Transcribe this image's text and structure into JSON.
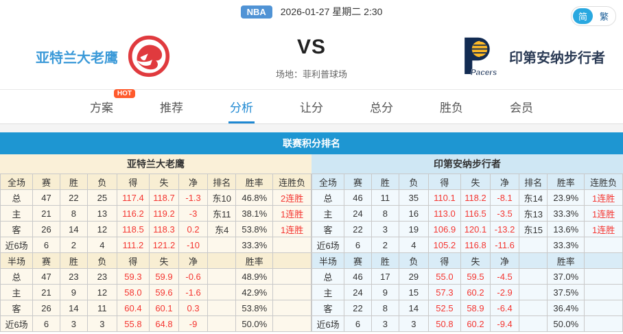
{
  "topbar": {
    "league": "NBA",
    "datetime": "2026-01-27 星期二 2:30",
    "lang": {
      "simplified": "简",
      "traditional": "繁"
    }
  },
  "match": {
    "home": "亚特兰大老鹰",
    "away": "印第安纳步行者",
    "vs": "VS",
    "venue": "场地：菲利普球场"
  },
  "tabs": [
    {
      "name": "plan",
      "label": "方案",
      "badge": "HOT"
    },
    {
      "name": "recommend",
      "label": "推荐"
    },
    {
      "name": "analysis",
      "label": "分析",
      "active": true
    },
    {
      "name": "handicap",
      "label": "让分"
    },
    {
      "name": "total",
      "label": "总分"
    },
    {
      "name": "winloss",
      "label": "胜负"
    },
    {
      "name": "member",
      "label": "会员"
    }
  ],
  "standings": {
    "section_title": "联赛积分排名",
    "left": {
      "team": "亚特兰大老鹰",
      "full": {
        "headers": [
          "全场",
          "赛",
          "胜",
          "负",
          "得",
          "失",
          "净",
          "排名",
          "胜率",
          "连胜负"
        ],
        "rows": [
          [
            "总",
            "47",
            "22",
            "25",
            "117.4",
            "118.7",
            "-1.3",
            "东10",
            "46.8%",
            "2连胜"
          ],
          [
            "主",
            "21",
            "8",
            "13",
            "116.2",
            "119.2",
            "-3",
            "东11",
            "38.1%",
            "1连胜"
          ],
          [
            "客",
            "26",
            "14",
            "12",
            "118.5",
            "118.3",
            "0.2",
            "东4",
            "53.8%",
            "1连胜"
          ],
          [
            "近6场",
            "6",
            "2",
            "4",
            "111.2",
            "121.2",
            "-10",
            "",
            "33.3%",
            ""
          ]
        ]
      },
      "half": {
        "headers": [
          "半场",
          "赛",
          "胜",
          "负",
          "得",
          "失",
          "净",
          "",
          "胜率",
          ""
        ],
        "rows": [
          [
            "总",
            "47",
            "23",
            "23",
            "59.3",
            "59.9",
            "-0.6",
            "",
            "48.9%",
            ""
          ],
          [
            "主",
            "21",
            "9",
            "12",
            "58.0",
            "59.6",
            "-1.6",
            "",
            "42.9%",
            ""
          ],
          [
            "客",
            "26",
            "14",
            "11",
            "60.4",
            "60.1",
            "0.3",
            "",
            "53.8%",
            ""
          ],
          [
            "近6场",
            "6",
            "3",
            "3",
            "55.8",
            "64.8",
            "-9",
            "",
            "50.0%",
            ""
          ]
        ]
      }
    },
    "right": {
      "team": "印第安纳步行者",
      "full": {
        "headers": [
          "全场",
          "赛",
          "胜",
          "负",
          "得",
          "失",
          "净",
          "排名",
          "胜率",
          "连胜负"
        ],
        "rows": [
          [
            "总",
            "46",
            "11",
            "35",
            "110.1",
            "118.2",
            "-8.1",
            "东14",
            "23.9%",
            "1连胜"
          ],
          [
            "主",
            "24",
            "8",
            "16",
            "113.0",
            "116.5",
            "-3.5",
            "东13",
            "33.3%",
            "1连胜"
          ],
          [
            "客",
            "22",
            "3",
            "19",
            "106.9",
            "120.1",
            "-13.2",
            "东15",
            "13.6%",
            "1连胜"
          ],
          [
            "近6场",
            "6",
            "2",
            "4",
            "105.2",
            "116.8",
            "-11.6",
            "",
            "33.3%",
            ""
          ]
        ]
      },
      "half": {
        "headers": [
          "半场",
          "赛",
          "胜",
          "负",
          "得",
          "失",
          "净",
          "",
          "胜率",
          ""
        ],
        "rows": [
          [
            "总",
            "46",
            "17",
            "29",
            "55.0",
            "59.5",
            "-4.5",
            "",
            "37.0%",
            ""
          ],
          [
            "主",
            "24",
            "9",
            "15",
            "57.3",
            "60.2",
            "-2.9",
            "",
            "37.5%",
            ""
          ],
          [
            "客",
            "22",
            "8",
            "14",
            "52.5",
            "58.9",
            "-6.4",
            "",
            "36.4%",
            ""
          ],
          [
            "近6场",
            "6",
            "3",
            "3",
            "50.8",
            "60.2",
            "-9.4",
            "",
            "50.0%",
            ""
          ]
        ]
      }
    }
  },
  "colors": {
    "accent_blue": "#1e96d2",
    "stat_red": "#f43530",
    "home_panel_cream": "#faf0d8",
    "away_panel_blue": "#cfe7f4",
    "home_name_blue": "#3a99d8",
    "hawks_red": "#e03a3e",
    "pacers_navy": "#122b52",
    "pacers_gold": "#fdb927",
    "hot_badge": "#ff5a2c"
  }
}
